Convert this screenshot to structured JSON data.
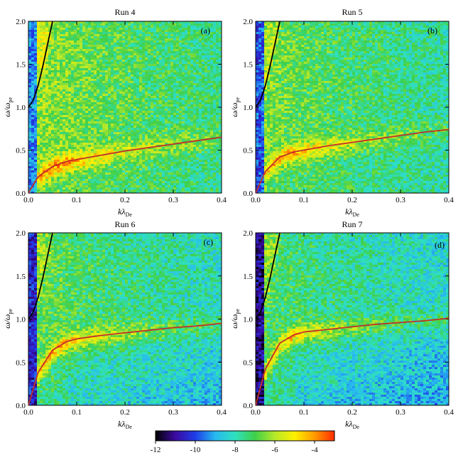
{
  "colormap": {
    "ticks": [
      -12,
      -10,
      -8,
      -6,
      -4
    ],
    "range": [
      -12,
      -3
    ],
    "stops": [
      "#000000",
      "#3b0aa0",
      "#1f3de8",
      "#27b8f0",
      "#2fe0c0",
      "#3fd04a",
      "#b6e82a",
      "#fff000",
      "#ff9a00",
      "#ff2a00"
    ]
  },
  "chart_data": [
    {
      "type": "heatmap",
      "title": "Run 4",
      "panel_label": "(a)",
      "xlabel_main": "k",
      "xlabel_lambda": "λ",
      "xlabel_sub": "De",
      "ylabel_main": "ω/ω",
      "ylabel_sub": "pe",
      "xlim": [
        0,
        0.4
      ],
      "ylim": [
        0,
        2.0
      ],
      "xticks": [
        "0.0",
        "0.1",
        "0.2",
        "0.3",
        "0.4"
      ],
      "yticks": [
        "0.0",
        "0.5",
        "1.0",
        "1.5",
        "2.0"
      ],
      "line_color": "#c0302a",
      "series": [
        {
          "color": "black",
          "x": [
            0,
            0.01,
            0.02,
            0.03,
            0.04,
            0.05
          ],
          "y": [
            1.0,
            1.08,
            1.25,
            1.48,
            1.74,
            2.0
          ]
        },
        {
          "color": "red",
          "x": [
            0,
            0.02,
            0.05,
            0.08,
            0.1,
            0.15,
            0.2,
            0.25,
            0.3,
            0.35,
            0.4
          ],
          "y": [
            0,
            0.19,
            0.31,
            0.37,
            0.39,
            0.44,
            0.49,
            0.53,
            0.57,
            0.61,
            0.65
          ]
        }
      ]
    },
    {
      "type": "heatmap",
      "title": "Run 5",
      "panel_label": "(b)",
      "xlabel_main": "k",
      "xlabel_lambda": "λ",
      "xlabel_sub": "De",
      "ylabel_main": "ω/ω",
      "ylabel_sub": "pe",
      "xlim": [
        0,
        0.4
      ],
      "ylim": [
        0,
        2.0
      ],
      "xticks": [
        "0.0",
        "0.1",
        "0.2",
        "0.3",
        "0.4"
      ],
      "yticks": [
        "0.0",
        "0.5",
        "1.0",
        "1.5",
        "2.0"
      ],
      "line_color": "#c0302a",
      "series": [
        {
          "color": "black",
          "x": [
            0,
            0.01,
            0.02,
            0.03,
            0.04,
            0.05
          ],
          "y": [
            1.0,
            1.08,
            1.25,
            1.48,
            1.74,
            2.0
          ]
        },
        {
          "color": "red",
          "x": [
            0,
            0.02,
            0.05,
            0.08,
            0.1,
            0.15,
            0.2,
            0.25,
            0.3,
            0.35,
            0.4
          ],
          "y": [
            0,
            0.25,
            0.42,
            0.48,
            0.5,
            0.55,
            0.59,
            0.63,
            0.67,
            0.71,
            0.74
          ]
        }
      ]
    },
    {
      "type": "heatmap",
      "title": "Run 6",
      "panel_label": "(c)",
      "xlabel_main": "k",
      "xlabel_lambda": "λ",
      "xlabel_sub": "De",
      "ylabel_main": "ω/ω",
      "ylabel_sub": "pe",
      "xlim": [
        0,
        0.4
      ],
      "ylim": [
        0,
        2.0
      ],
      "xticks": [
        "0.0",
        "0.1",
        "0.2",
        "0.3",
        "0.4"
      ],
      "yticks": [
        "0.0",
        "0.5",
        "1.0",
        "1.5",
        "2.0"
      ],
      "line_color": "#c0302a",
      "series": [
        {
          "color": "black",
          "x": [
            0,
            0.01,
            0.02,
            0.03,
            0.04,
            0.05
          ],
          "y": [
            1.0,
            1.08,
            1.25,
            1.48,
            1.74,
            2.0
          ]
        },
        {
          "color": "red",
          "x": [
            0,
            0.02,
            0.05,
            0.08,
            0.1,
            0.15,
            0.2,
            0.25,
            0.3,
            0.35,
            0.4
          ],
          "y": [
            0,
            0.38,
            0.64,
            0.74,
            0.77,
            0.81,
            0.84,
            0.87,
            0.9,
            0.92,
            0.95
          ]
        }
      ]
    },
    {
      "type": "heatmap",
      "title": "Run 7",
      "panel_label": "(d)",
      "xlabel_main": "k",
      "xlabel_lambda": "λ",
      "xlabel_sub": "De",
      "ylabel_main": "ω/ω",
      "ylabel_sub": "pe",
      "xlim": [
        0,
        0.4
      ],
      "ylim": [
        0,
        2.0
      ],
      "xticks": [
        "0.0",
        "0.1",
        "0.2",
        "0.3",
        "0.4"
      ],
      "yticks": [
        "0.0",
        "0.5",
        "1.0",
        "1.5",
        "2.0"
      ],
      "line_color": "#c0302a",
      "series": [
        {
          "color": "black",
          "x": [
            0,
            0.01,
            0.02,
            0.03,
            0.04,
            0.05
          ],
          "y": [
            1.0,
            1.08,
            1.25,
            1.48,
            1.74,
            2.0
          ]
        },
        {
          "color": "red",
          "x": [
            0,
            0.02,
            0.05,
            0.08,
            0.1,
            0.15,
            0.2,
            0.25,
            0.3,
            0.35,
            0.4
          ],
          "y": [
            0,
            0.42,
            0.72,
            0.82,
            0.85,
            0.88,
            0.91,
            0.94,
            0.96,
            0.98,
            1.01
          ]
        }
      ]
    }
  ]
}
